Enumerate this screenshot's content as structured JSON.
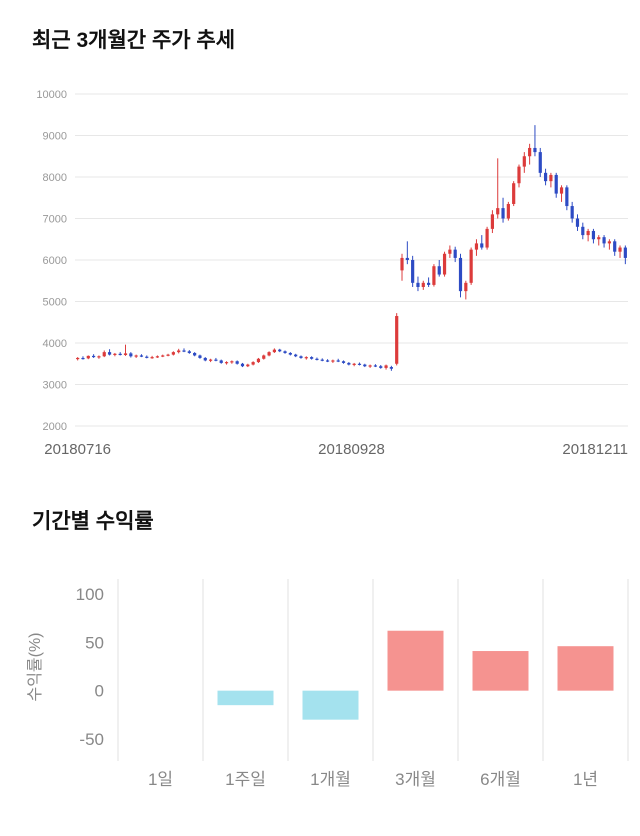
{
  "price_section": {
    "title": "최근 3개월간 주가 추세"
  },
  "returns_section": {
    "title": "기간별 수익률"
  },
  "chart_data": [
    {
      "type": "candlestick",
      "title": "최근 3개월간 주가 추세",
      "x_labels": [
        "20180716",
        "20180928",
        "20181211"
      ],
      "ylim": [
        2000,
        10000
      ],
      "y_ticks": [
        2000,
        3000,
        4000,
        5000,
        6000,
        7000,
        8000,
        9000,
        10000
      ],
      "grid": "horizontal",
      "legend": "none",
      "up_color": "#dc3b3b",
      "down_color": "#2d4bc4",
      "candles": [
        [
          3620,
          3660,
          3580,
          3640
        ],
        [
          3640,
          3680,
          3600,
          3630
        ],
        [
          3630,
          3700,
          3610,
          3690
        ],
        [
          3690,
          3730,
          3640,
          3660
        ],
        [
          3660,
          3700,
          3620,
          3680
        ],
        [
          3680,
          3820,
          3660,
          3780
        ],
        [
          3780,
          3850,
          3700,
          3720
        ],
        [
          3720,
          3760,
          3680,
          3740
        ],
        [
          3740,
          3780,
          3700,
          3710
        ],
        [
          3710,
          3960,
          3690,
          3750
        ],
        [
          3750,
          3780,
          3650,
          3680
        ],
        [
          3680,
          3720,
          3640,
          3700
        ],
        [
          3700,
          3730,
          3660,
          3670
        ],
        [
          3670,
          3700,
          3630,
          3650
        ],
        [
          3650,
          3690,
          3620,
          3660
        ],
        [
          3660,
          3700,
          3640,
          3680
        ],
        [
          3680,
          3720,
          3660,
          3700
        ],
        [
          3700,
          3740,
          3680,
          3720
        ],
        [
          3720,
          3800,
          3700,
          3780
        ],
        [
          3780,
          3860,
          3750,
          3820
        ],
        [
          3820,
          3870,
          3780,
          3800
        ],
        [
          3800,
          3830,
          3740,
          3760
        ],
        [
          3760,
          3780,
          3680,
          3700
        ],
        [
          3700,
          3720,
          3620,
          3640
        ],
        [
          3640,
          3660,
          3560,
          3580
        ],
        [
          3580,
          3620,
          3540,
          3600
        ],
        [
          3600,
          3640,
          3560,
          3580
        ],
        [
          3580,
          3600,
          3500,
          3520
        ],
        [
          3520,
          3560,
          3480,
          3540
        ],
        [
          3540,
          3580,
          3500,
          3560
        ],
        [
          3560,
          3580,
          3480,
          3500
        ],
        [
          3500,
          3520,
          3420,
          3440
        ],
        [
          3440,
          3500,
          3420,
          3480
        ],
        [
          3480,
          3560,
          3460,
          3540
        ],
        [
          3540,
          3640,
          3520,
          3620
        ],
        [
          3620,
          3720,
          3600,
          3700
        ],
        [
          3700,
          3800,
          3680,
          3780
        ],
        [
          3780,
          3870,
          3760,
          3840
        ],
        [
          3840,
          3860,
          3780,
          3800
        ],
        [
          3800,
          3820,
          3740,
          3760
        ],
        [
          3760,
          3780,
          3700,
          3720
        ],
        [
          3720,
          3740,
          3660,
          3680
        ],
        [
          3680,
          3700,
          3620,
          3640
        ],
        [
          3640,
          3680,
          3600,
          3660
        ],
        [
          3660,
          3680,
          3600,
          3620
        ],
        [
          3620,
          3650,
          3580,
          3600
        ],
        [
          3600,
          3630,
          3560,
          3580
        ],
        [
          3580,
          3610,
          3540,
          3560
        ],
        [
          3560,
          3600,
          3520,
          3580
        ],
        [
          3580,
          3620,
          3540,
          3560
        ],
        [
          3560,
          3580,
          3500,
          3520
        ],
        [
          3520,
          3540,
          3460,
          3480
        ],
        [
          3480,
          3520,
          3440,
          3500
        ],
        [
          3500,
          3530,
          3460,
          3480
        ],
        [
          3480,
          3500,
          3420,
          3440
        ],
        [
          3440,
          3480,
          3400,
          3460
        ],
        [
          3460,
          3490,
          3420,
          3440
        ],
        [
          3440,
          3470,
          3380,
          3400
        ],
        [
          3400,
          3480,
          3360,
          3460
        ],
        [
          3420,
          3450,
          3330,
          3380
        ],
        [
          3500,
          4720,
          3460,
          4650
        ],
        [
          5750,
          6150,
          5500,
          6050
        ],
        [
          6050,
          6450,
          5900,
          6000
        ],
        [
          6000,
          6100,
          5350,
          5450
        ],
        [
          5450,
          5600,
          5250,
          5350
        ],
        [
          5350,
          5500,
          5280,
          5450
        ],
        [
          5450,
          5580,
          5350,
          5400
        ],
        [
          5400,
          5900,
          5360,
          5850
        ],
        [
          5850,
          6000,
          5600,
          5650
        ],
        [
          5650,
          6200,
          5600,
          6150
        ],
        [
          6150,
          6350,
          6050,
          6250
        ],
        [
          6250,
          6320,
          5950,
          6050
        ],
        [
          6050,
          6150,
          5100,
          5250
        ],
        [
          5250,
          5500,
          5050,
          5450
        ],
        [
          5450,
          6300,
          5400,
          6250
        ],
        [
          6250,
          6500,
          6100,
          6400
        ],
        [
          6400,
          6600,
          6250,
          6300
        ],
        [
          6300,
          6800,
          6250,
          6750
        ],
        [
          6750,
          7200,
          6650,
          7100
        ],
        [
          7100,
          8450,
          7000,
          7250
        ],
        [
          7250,
          7500,
          6900,
          7000
        ],
        [
          7000,
          7400,
          6950,
          7350
        ],
        [
          7350,
          7900,
          7300,
          7850
        ],
        [
          7850,
          8300,
          7750,
          8250
        ],
        [
          8250,
          8600,
          8100,
          8500
        ],
        [
          8500,
          8800,
          8300,
          8700
        ],
        [
          8700,
          9250,
          8500,
          8600
        ],
        [
          8600,
          8700,
          8000,
          8100
        ],
        [
          8100,
          8200,
          7800,
          7900
        ],
        [
          7900,
          8100,
          7750,
          8050
        ],
        [
          8050,
          8100,
          7500,
          7600
        ],
        [
          7600,
          7800,
          7400,
          7750
        ],
        [
          7750,
          7800,
          7200,
          7300
        ],
        [
          7300,
          7400,
          6900,
          7000
        ],
        [
          7000,
          7100,
          6700,
          6800
        ],
        [
          6800,
          6900,
          6500,
          6600
        ],
        [
          6600,
          6750,
          6450,
          6700
        ],
        [
          6700,
          6750,
          6400,
          6500
        ],
        [
          6500,
          6600,
          6350,
          6550
        ],
        [
          6550,
          6600,
          6300,
          6400
        ],
        [
          6400,
          6500,
          6250,
          6450
        ],
        [
          6450,
          6500,
          6100,
          6200
        ],
        [
          6200,
          6350,
          6050,
          6300
        ],
        [
          6300,
          6350,
          5900,
          6050
        ]
      ]
    },
    {
      "type": "bar",
      "title": "기간별 수익률",
      "categories": [
        "1일",
        "1주일",
        "1개월",
        "3개월",
        "6개월",
        "1년"
      ],
      "values": [
        0,
        -15,
        -30,
        62,
        41,
        46
      ],
      "ylabel": "수익률(%)",
      "y_ticks": [
        100,
        50,
        0,
        -50
      ],
      "ylim": [
        -50,
        100
      ],
      "grid": "vertical",
      "legend": "none",
      "positive_color": "#f59390",
      "negative_color": "#a4e2ee"
    }
  ]
}
